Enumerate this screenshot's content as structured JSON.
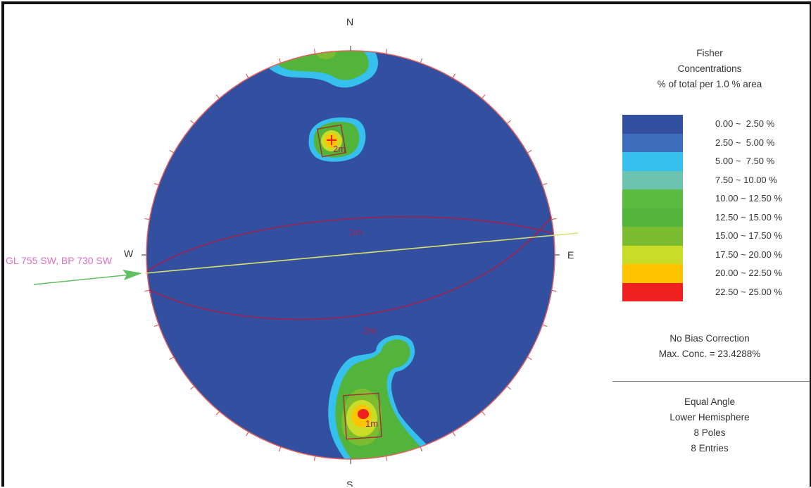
{
  "stereonet": {
    "compass": {
      "n": "N",
      "s": "S",
      "e": "E",
      "w": "W"
    },
    "plane_labels": {
      "plane1": "1m",
      "plane2": "2m",
      "pole1": "1m",
      "pole2": "2m"
    },
    "traverse_label": "GL 755 SW, BP 730 SW",
    "colors": {
      "background": "#3350a0",
      "outline": "#e06060",
      "great_circle": "#a02050",
      "traverse": "#d8e070",
      "arrow": "#60c060",
      "traverse_text": "#e070c0",
      "pole_box": "#a03030"
    }
  },
  "legend": {
    "title_lines": [
      "Fisher",
      "Concentrations",
      "% of total per 1.0 % area"
    ],
    "bins": [
      {
        "label": "0.00 ~  2.50 %",
        "color": "#3350a0"
      },
      {
        "label": "2.50 ~  5.00 %",
        "color": "#3d6cbc"
      },
      {
        "label": "5.00 ~  7.50 %",
        "color": "#35c0ee"
      },
      {
        "label": "7.50 ~ 10.00 %",
        "color": "#6cc4b0"
      },
      {
        "label": "10.00 ~ 12.50 %",
        "color": "#5cbc40"
      },
      {
        "label": "12.50 ~ 15.00 %",
        "color": "#52b43a"
      },
      {
        "label": "15.00 ~ 17.50 %",
        "color": "#7cbc30"
      },
      {
        "label": "17.50 ~ 20.00 %",
        "color": "#c8dc28"
      },
      {
        "label": "20.00 ~ 22.50 %",
        "color": "#ffc400"
      },
      {
        "label": "22.50 ~ 25.00 %",
        "color": "#ee2020"
      }
    ],
    "bias_lines": [
      "No Bias Correction",
      "Max. Conc. = 23.4288%"
    ],
    "projection_lines": [
      "Equal Angle",
      "Lower Hemisphere",
      "8 Poles",
      "8 Entries"
    ]
  }
}
